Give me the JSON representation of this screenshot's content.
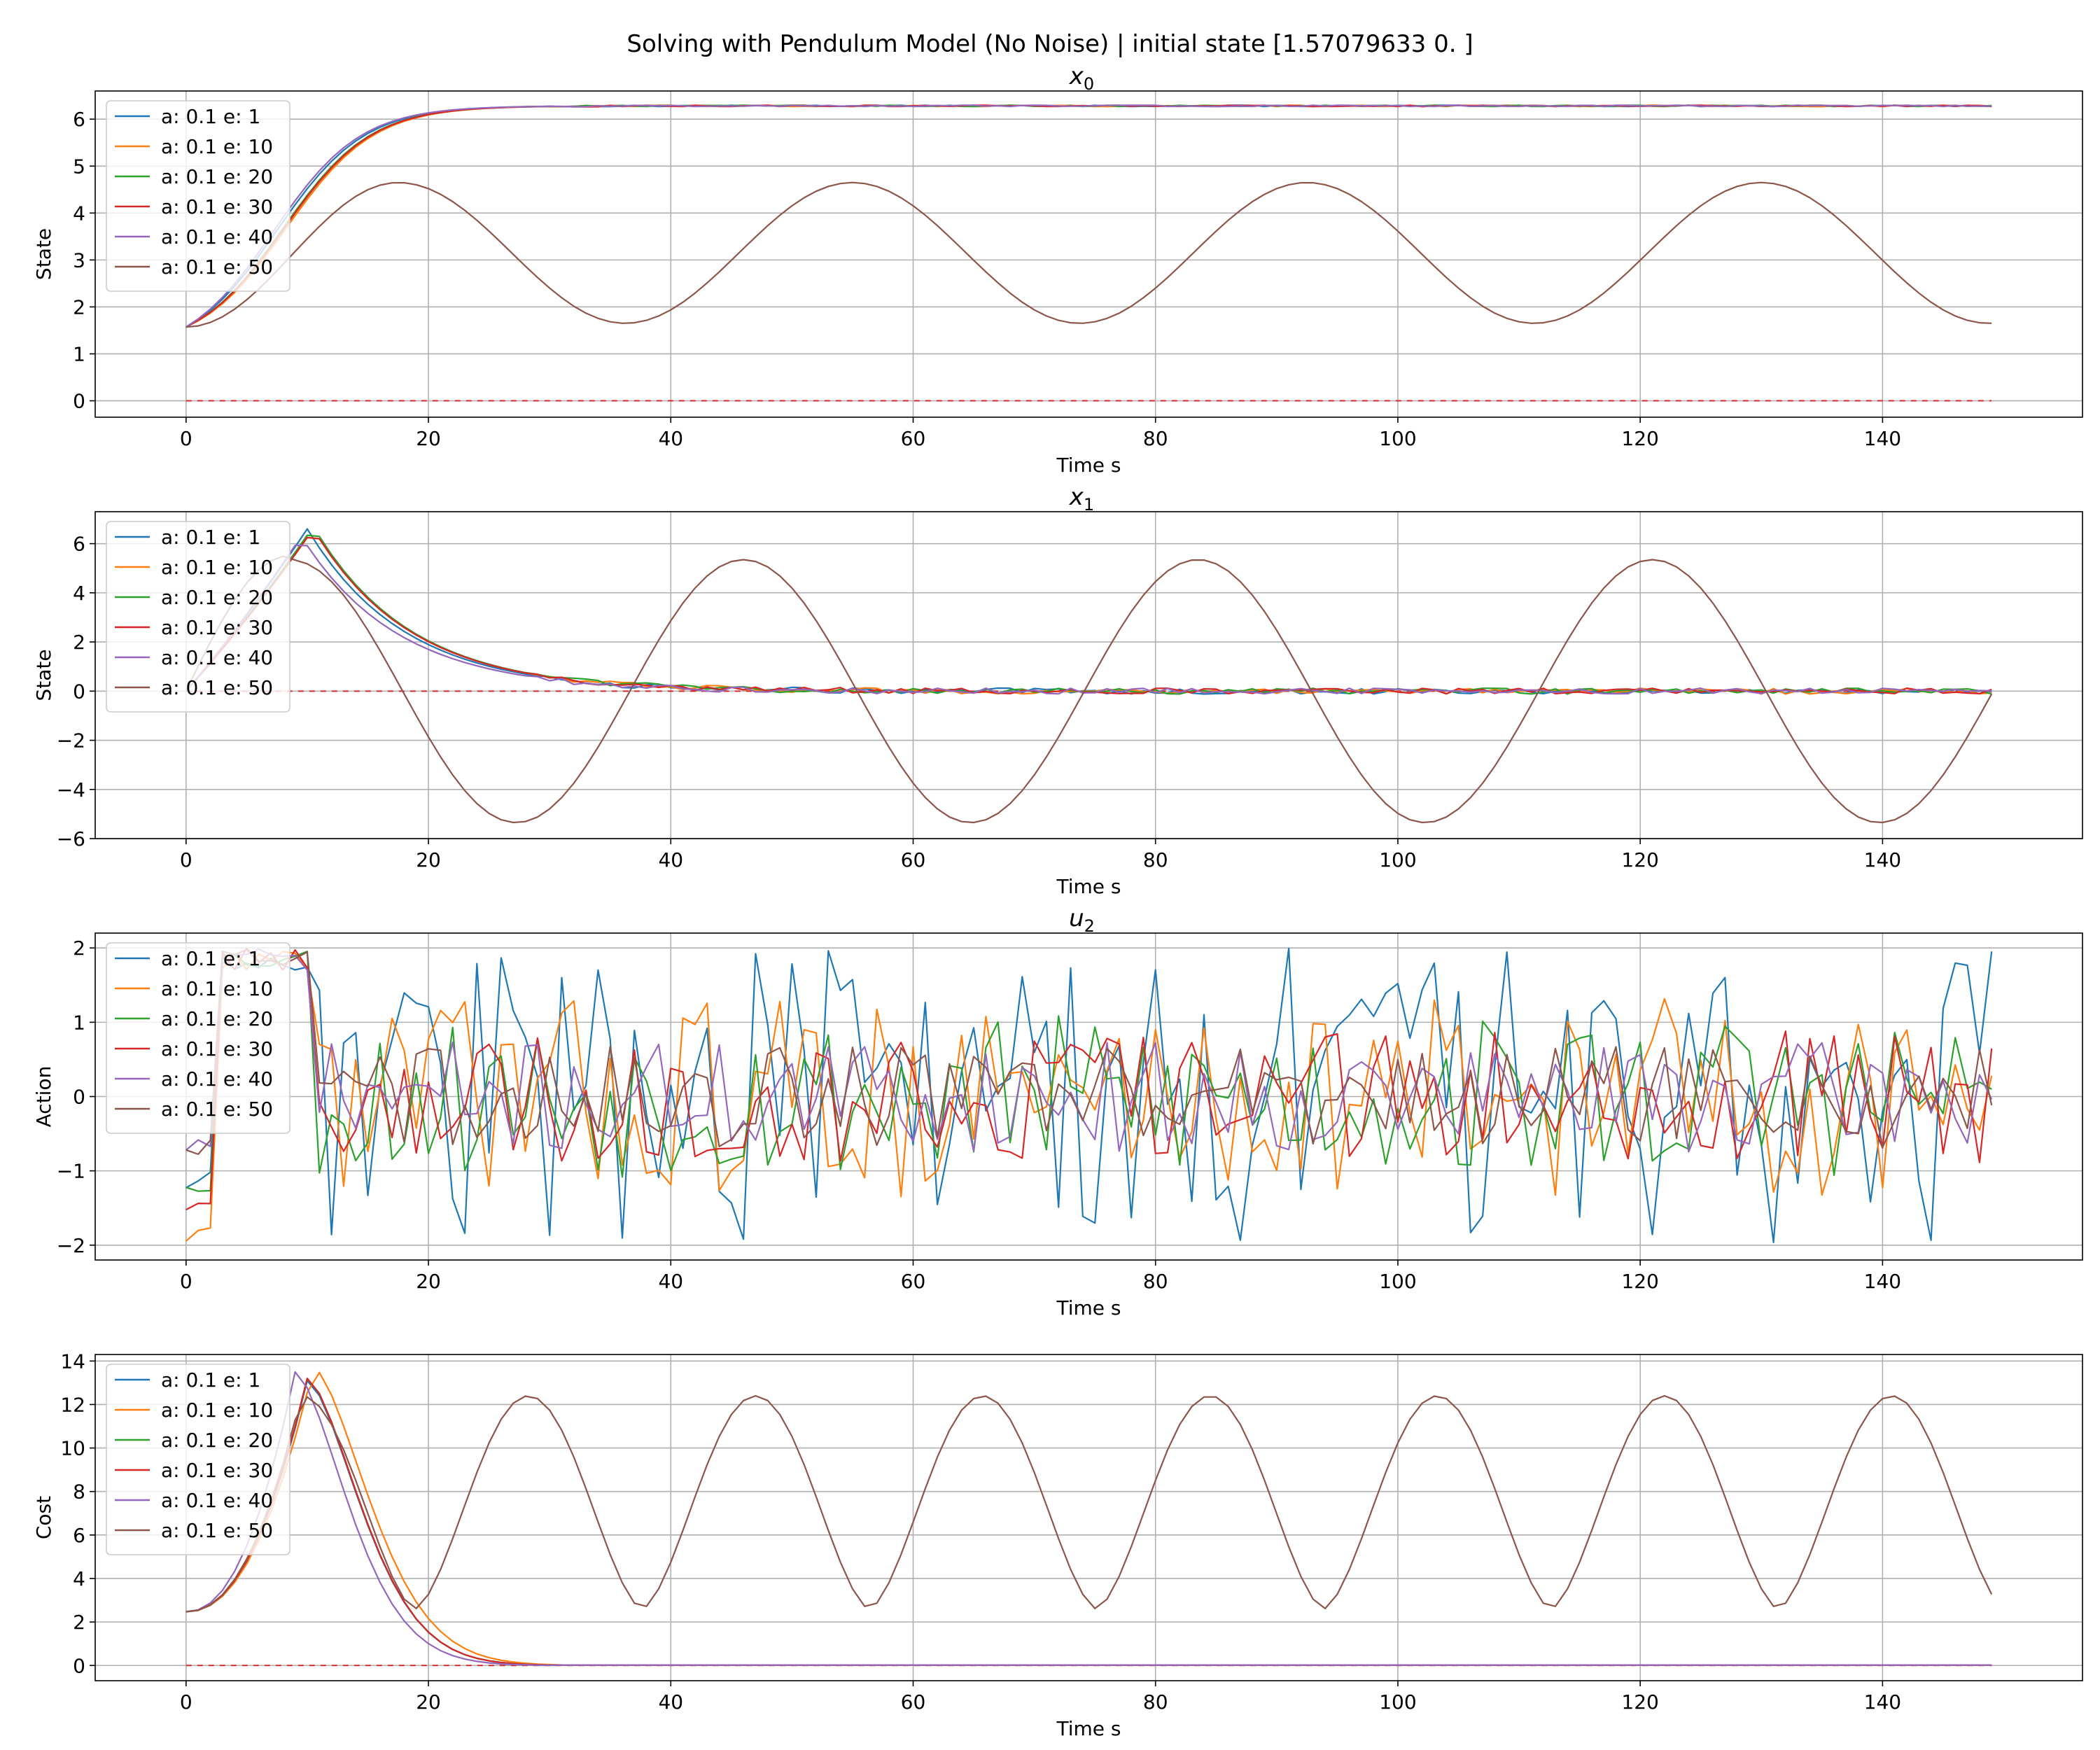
{
  "figure": {
    "suptitle": "Solving with Pendulum Model (No Noise) | initial state [1.57079633 0.         ]"
  },
  "series_styles": {
    "names": [
      "a: 0.1 e: 1",
      "a: 0.1 e: 10",
      "a: 0.1 e: 20",
      "a: 0.1 e: 30",
      "a: 0.1 e: 40",
      "a: 0.1 e: 50"
    ],
    "colors": [
      "#1f77b4",
      "#ff7f0e",
      "#2ca02c",
      "#d62728",
      "#9467bd",
      "#8c564b"
    ]
  },
  "chart_data": [
    {
      "type": "line",
      "title": "x",
      "title_sub": "0",
      "xlabel": "Time s",
      "ylabel": "State",
      "xlim": [
        -7.5,
        156.5
      ],
      "ylim": [
        -0.35,
        6.6
      ],
      "xticks": [
        0,
        20,
        40,
        60,
        80,
        100,
        120,
        140
      ],
      "yticks": [
        0,
        1,
        2,
        3,
        4,
        5,
        6
      ],
      "grid": true,
      "legend": "upper-left",
      "reference_line": 0,
      "series": [
        {
          "name": "a: 0.1 e: 1",
          "pattern": "converge",
          "start": 1.5708,
          "target": 6.283,
          "tau": 7.0,
          "delay": 7.5,
          "noise": 0.015
        },
        {
          "name": "a: 0.1 e: 10",
          "pattern": "converge",
          "start": 1.5708,
          "target": 6.283,
          "tau": 7.0,
          "delay": 8.3,
          "noise": 0.015
        },
        {
          "name": "a: 0.1 e: 20",
          "pattern": "converge",
          "start": 1.5708,
          "target": 6.283,
          "tau": 7.0,
          "delay": 8.0,
          "noise": 0.015
        },
        {
          "name": "a: 0.1 e: 30",
          "pattern": "converge",
          "start": 1.5708,
          "target": 6.283,
          "tau": 7.0,
          "delay": 8.1,
          "noise": 0.015
        },
        {
          "name": "a: 0.1 e: 40",
          "pattern": "converge",
          "start": 1.5708,
          "target": 6.283,
          "tau": 7.0,
          "delay": 7.2,
          "noise": 0.015
        },
        {
          "name": "a: 0.1 e: 50",
          "pattern": "oscillate",
          "mid": 3.15,
          "amp": 1.5,
          "period": 37.5,
          "peak_t": 17.5,
          "start": 1.5708
        }
      ]
    },
    {
      "type": "line",
      "title": "x",
      "title_sub": "1",
      "xlabel": "Time s",
      "ylabel": "State",
      "xlim": [
        -7.5,
        156.5
      ],
      "ylim": [
        -6.0,
        7.3
      ],
      "xticks": [
        0,
        20,
        40,
        60,
        80,
        100,
        120,
        140
      ],
      "yticks": [
        -6,
        -4,
        -2,
        0,
        2,
        4,
        6
      ],
      "grid": true,
      "legend": "upper-left",
      "reference_line": 0,
      "series": [
        {
          "name": "a: 0.1 e: 1",
          "pattern": "pulse",
          "peak": 6.6,
          "peak_t": 10,
          "tau": 8.0,
          "noise": 0.12
        },
        {
          "name": "a: 0.1 e: 10",
          "pattern": "pulse",
          "peak": 6.6,
          "peak_t": 10.5,
          "tau": 8.0,
          "noise": 0.12
        },
        {
          "name": "a: 0.1 e: 20",
          "pattern": "pulse",
          "peak": 6.7,
          "peak_t": 10.5,
          "tau": 8.0,
          "noise": 0.12
        },
        {
          "name": "a: 0.1 e: 30",
          "pattern": "pulse",
          "peak": 6.6,
          "peak_t": 10.5,
          "tau": 8.0,
          "noise": 0.12
        },
        {
          "name": "a: 0.1 e: 40",
          "pattern": "pulse",
          "peak": 6.3,
          "peak_t": 9.5,
          "tau": 8.0,
          "noise": 0.12
        },
        {
          "name": "a: 0.1 e: 50",
          "pattern": "wave",
          "amp": 5.35,
          "period": 37.5,
          "peak_t": 8.5,
          "start": 0.0
        }
      ]
    },
    {
      "type": "line",
      "title": "u",
      "title_sub": "2",
      "xlabel": "Time s",
      "ylabel": "Action",
      "xlim": [
        -7.5,
        156.5
      ],
      "ylim": [
        -2.2,
        2.2
      ],
      "xticks": [
        0,
        20,
        40,
        60,
        80,
        100,
        120,
        140
      ],
      "yticks": [
        -2,
        -1,
        0,
        1,
        2
      ],
      "grid": true,
      "legend": "upper-left",
      "series": [
        {
          "name": "a: 0.1 e: 1",
          "pattern": "action",
          "start": -1.15,
          "amp": 2.0,
          "seed": 11
        },
        {
          "name": "a: 0.1 e: 10",
          "pattern": "action",
          "start": -1.87,
          "amp": 1.35,
          "seed": 23
        },
        {
          "name": "a: 0.1 e: 20",
          "pattern": "action",
          "start": -1.15,
          "amp": 1.1,
          "seed": 37
        },
        {
          "name": "a: 0.1 e: 30",
          "pattern": "action",
          "start": -1.45,
          "amp": 0.9,
          "seed": 41
        },
        {
          "name": "a: 0.1 e: 40",
          "pattern": "action",
          "start": -0.65,
          "amp": 0.75,
          "seed": 53
        },
        {
          "name": "a: 0.1 e: 50",
          "pattern": "action",
          "start": -0.65,
          "amp": 0.7,
          "seed": 67
        }
      ]
    },
    {
      "type": "line",
      "title": "",
      "title_sub": "",
      "xlabel": "Time s",
      "ylabel": "Cost",
      "xlim": [
        -7.5,
        156.5
      ],
      "ylim": [
        -0.7,
        14.3
      ],
      "xticks": [
        0,
        20,
        40,
        60,
        80,
        100,
        120,
        140
      ],
      "yticks": [
        0,
        2,
        4,
        6,
        8,
        10,
        12,
        14
      ],
      "grid": true,
      "legend": "upper-left",
      "reference_line": 0,
      "series": [
        {
          "name": "a: 0.1 e: 1",
          "pattern": "costpulse",
          "start": 2.47,
          "peak": 13.1,
          "peak_t": 10,
          "width": 4.5
        },
        {
          "name": "a: 0.1 e: 10",
          "pattern": "costpulse",
          "start": 2.47,
          "peak": 13.7,
          "peak_t": 10.5,
          "width": 4.7
        },
        {
          "name": "a: 0.1 e: 20",
          "pattern": "costpulse",
          "start": 2.47,
          "peak": 13.2,
          "peak_t": 10,
          "width": 4.5
        },
        {
          "name": "a: 0.1 e: 30",
          "pattern": "costpulse",
          "start": 2.47,
          "peak": 13.2,
          "peak_t": 10,
          "width": 4.5
        },
        {
          "name": "a: 0.1 e: 40",
          "pattern": "costpulse",
          "start": 2.47,
          "peak": 13.5,
          "peak_t": 9,
          "width": 4.4
        },
        {
          "name": "a: 0.1 e: 50",
          "pattern": "costwave",
          "start": 2.47,
          "low": 2.6,
          "high": 12.4,
          "period": 18.75,
          "peak_t": 9.5
        }
      ]
    }
  ]
}
